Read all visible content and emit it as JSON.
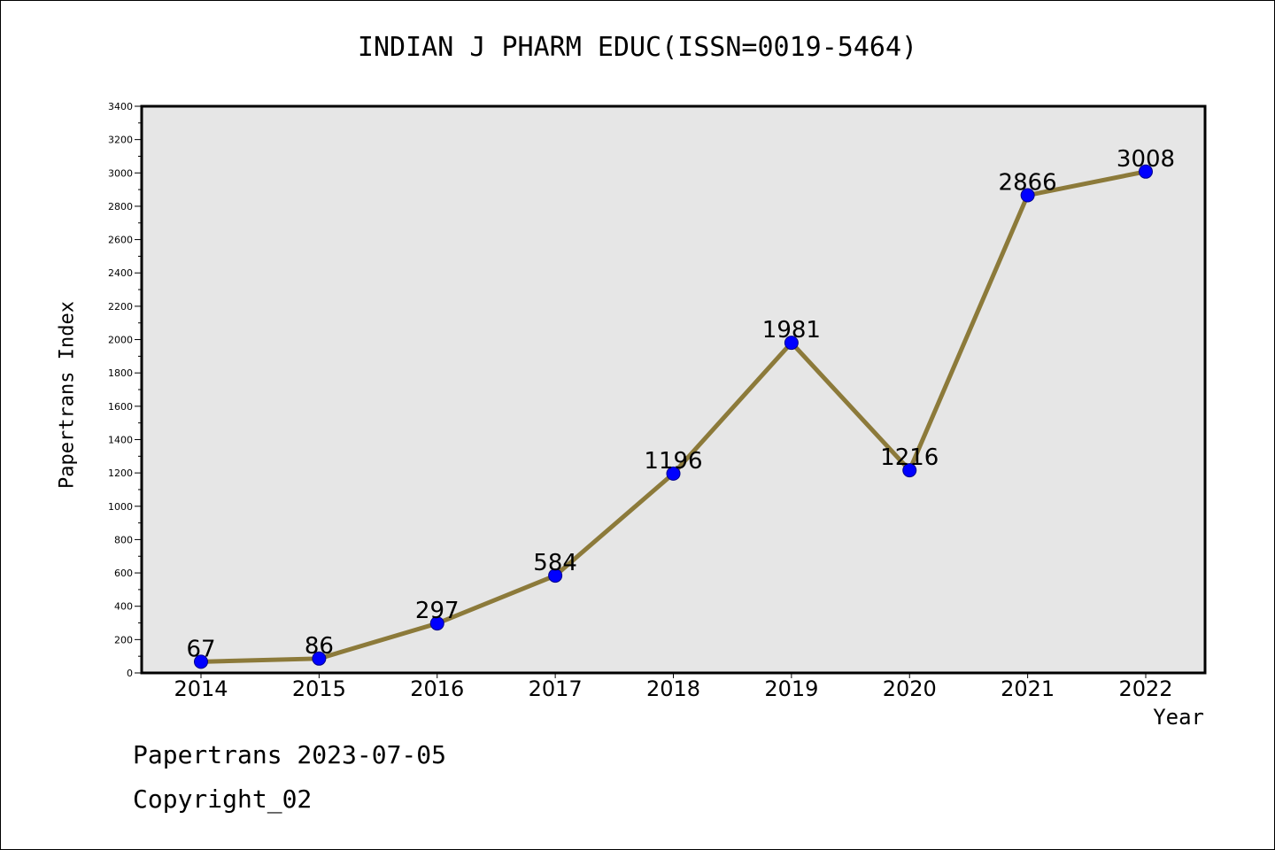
{
  "chart_data": {
    "type": "line",
    "title": "INDIAN J PHARM EDUC(ISSN=0019-5464)",
    "xlabel": "Year",
    "ylabel": "Papertrans Index",
    "categories": [
      "2014",
      "2015",
      "2016",
      "2017",
      "2018",
      "2019",
      "2020",
      "2021",
      "2022"
    ],
    "values": [
      67,
      86,
      297,
      584,
      1196,
      1981,
      1216,
      2866,
      3008
    ],
    "data_labels": [
      "67",
      "86",
      "297",
      "584",
      "1196",
      "1981",
      "1216",
      "2866",
      "3008"
    ],
    "ylim": [
      0,
      3400
    ],
    "yticks": [
      0,
      200,
      400,
      600,
      800,
      1000,
      1200,
      1400,
      1600,
      1800,
      2000,
      2200,
      2400,
      2600,
      2800,
      3000,
      3200,
      3400
    ],
    "grid": false,
    "line_color": "#8c7a3a",
    "marker_color": "#0000ff",
    "plot_background": "#e6e6e6"
  },
  "footer": {
    "line1": "Papertrans 2023-07-05",
    "line2": "Copyright_02"
  }
}
